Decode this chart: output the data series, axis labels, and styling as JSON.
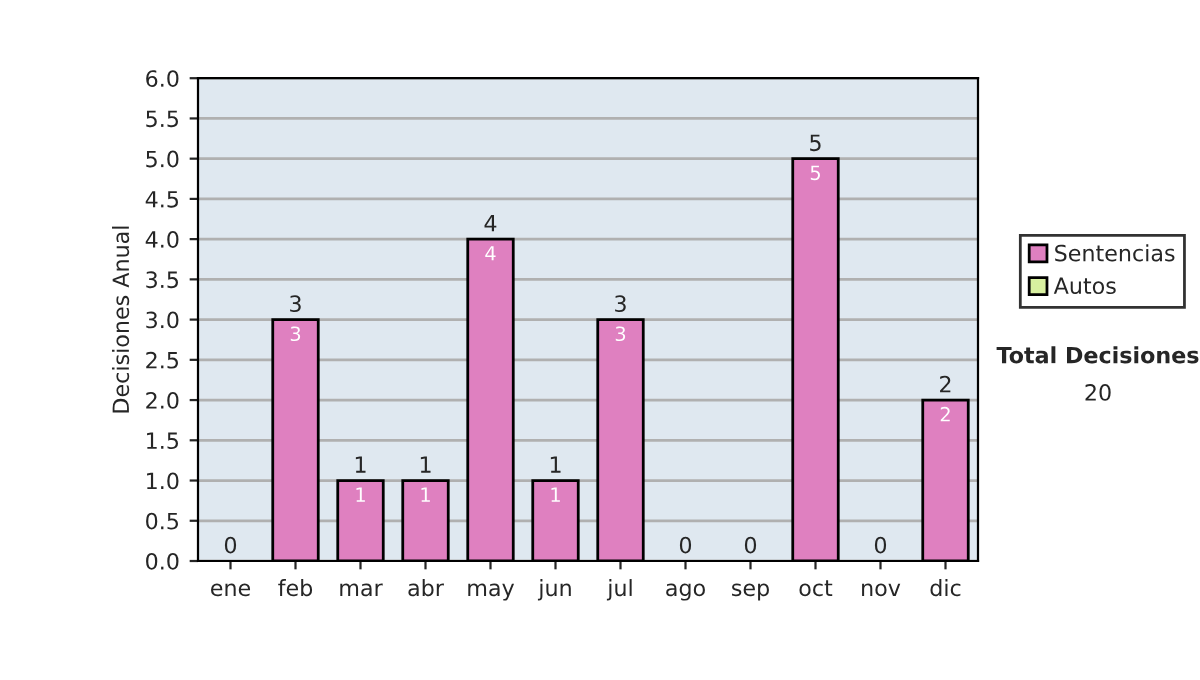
{
  "chart_data": {
    "type": "bar",
    "stacked": true,
    "ylabel": "Decisiones Anual",
    "categories": [
      "ene",
      "feb",
      "mar",
      "abr",
      "may",
      "jun",
      "jul",
      "ago",
      "sep",
      "oct",
      "nov",
      "dic"
    ],
    "series": [
      {
        "name": "Sentencias",
        "color": "#df80c0",
        "values": [
          0,
          3,
          1,
          1,
          4,
          1,
          3,
          0,
          0,
          5,
          0,
          2
        ],
        "value_labels": [
          null,
          "3",
          "1",
          "1",
          "4",
          "1",
          "3",
          null,
          null,
          "5",
          null,
          "2"
        ]
      },
      {
        "name": "Autos",
        "color": "#d8f0a0",
        "values": [
          0,
          0,
          0,
          0,
          0,
          0,
          0,
          0,
          0,
          0,
          0,
          0
        ]
      }
    ],
    "totals": [
      "0",
      "3",
      "1",
      "1",
      "4",
      "1",
      "3",
      "0",
      "0",
      "5",
      "0",
      "2"
    ],
    "ylim": [
      0,
      6
    ],
    "yticks": [
      {
        "value": 0,
        "label": "0.0"
      },
      {
        "value": 0.5,
        "label": "0.5"
      },
      {
        "value": 1,
        "label": "1.0"
      },
      {
        "value": 1.5,
        "label": "1.5"
      },
      {
        "value": 2,
        "label": "2.0"
      },
      {
        "value": 2.5,
        "label": "2.5"
      },
      {
        "value": 3,
        "label": "3.0"
      },
      {
        "value": 3.5,
        "label": "3.5"
      },
      {
        "value": 4,
        "label": "4.0"
      },
      {
        "value": 4.5,
        "label": "4.5"
      },
      {
        "value": 5,
        "label": "5.0"
      },
      {
        "value": 5.5,
        "label": "5.5"
      },
      {
        "value": 6,
        "label": "6.0"
      }
    ],
    "grid": "y",
    "legend": "right",
    "annotations": [
      "Total Decisiones",
      "20"
    ]
  }
}
